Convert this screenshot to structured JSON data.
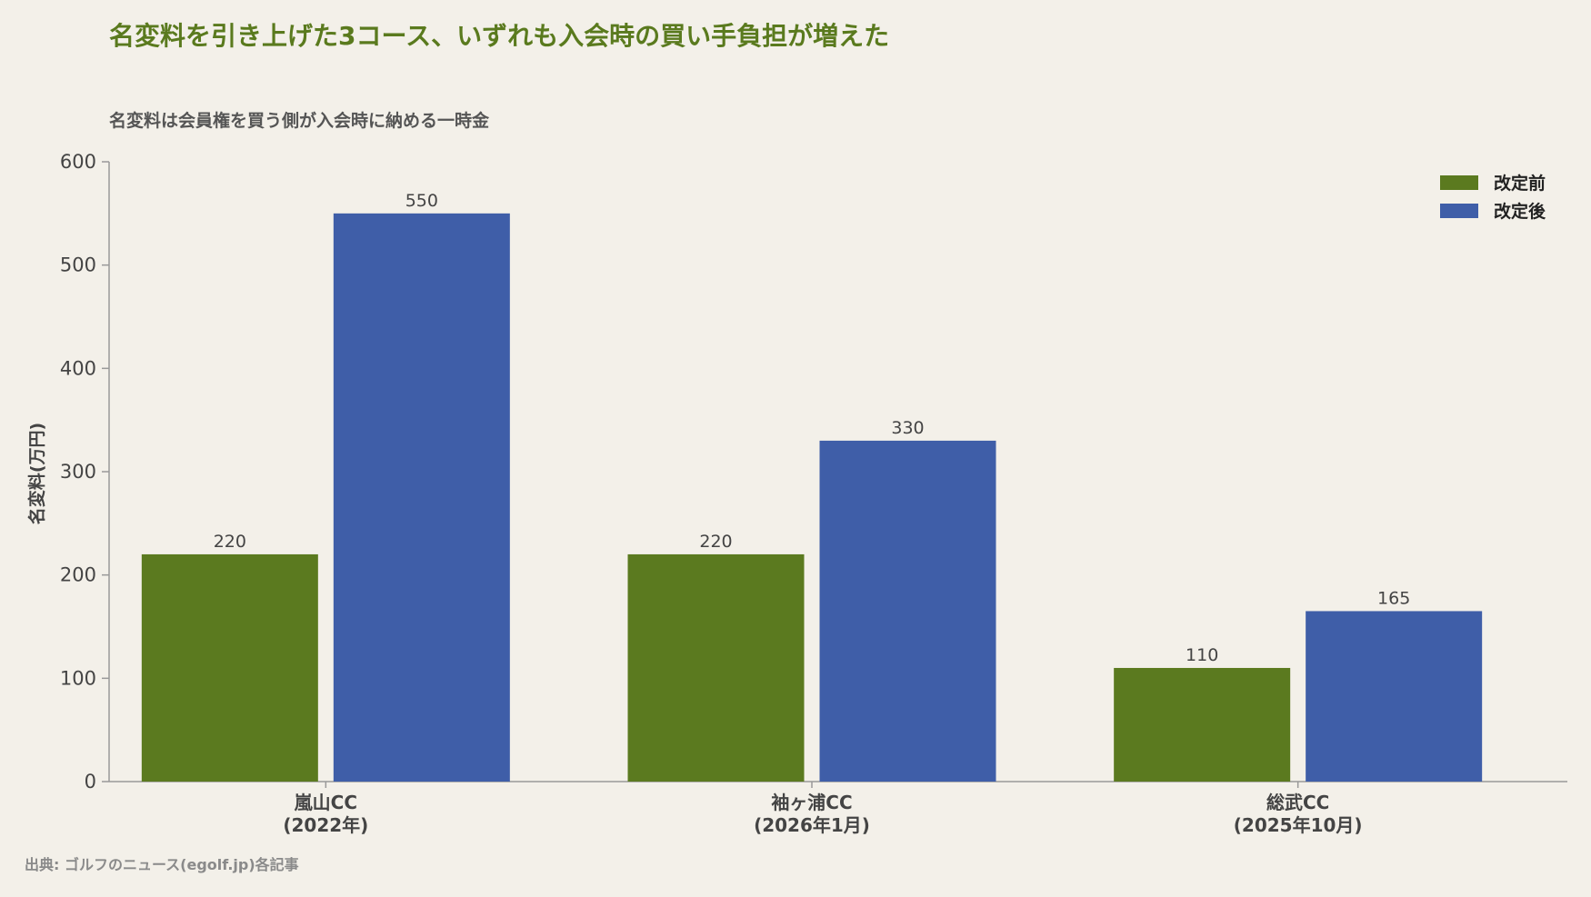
{
  "title": "名変料を引き上げた3コース、いずれも入会時の買い手負担が増えた",
  "subtitle": "名変料は会員権を買う側が入会時に納める一時金",
  "source": "出典: ゴルフのニュース(egolf.jp)各記事",
  "chart_data": {
    "type": "bar",
    "categories": [
      [
        "嵐山CC",
        "(2022年)"
      ],
      [
        "袖ヶ浦CC",
        "(2026年1月)"
      ],
      [
        "総武CC",
        "(2025年10月)"
      ]
    ],
    "series": [
      {
        "name": "改定前",
        "values": [
          220,
          220,
          110
        ],
        "color": "#5b7a1f"
      },
      {
        "name": "改定後",
        "values": [
          550,
          330,
          165
        ],
        "color": "#3f5ea8"
      }
    ],
    "ylabel": "名変料(万円)",
    "ylim": [
      0,
      600
    ],
    "yticks": [
      0,
      100,
      200,
      300,
      400,
      500,
      600
    ],
    "grid": false,
    "legend_position": "top-right"
  }
}
